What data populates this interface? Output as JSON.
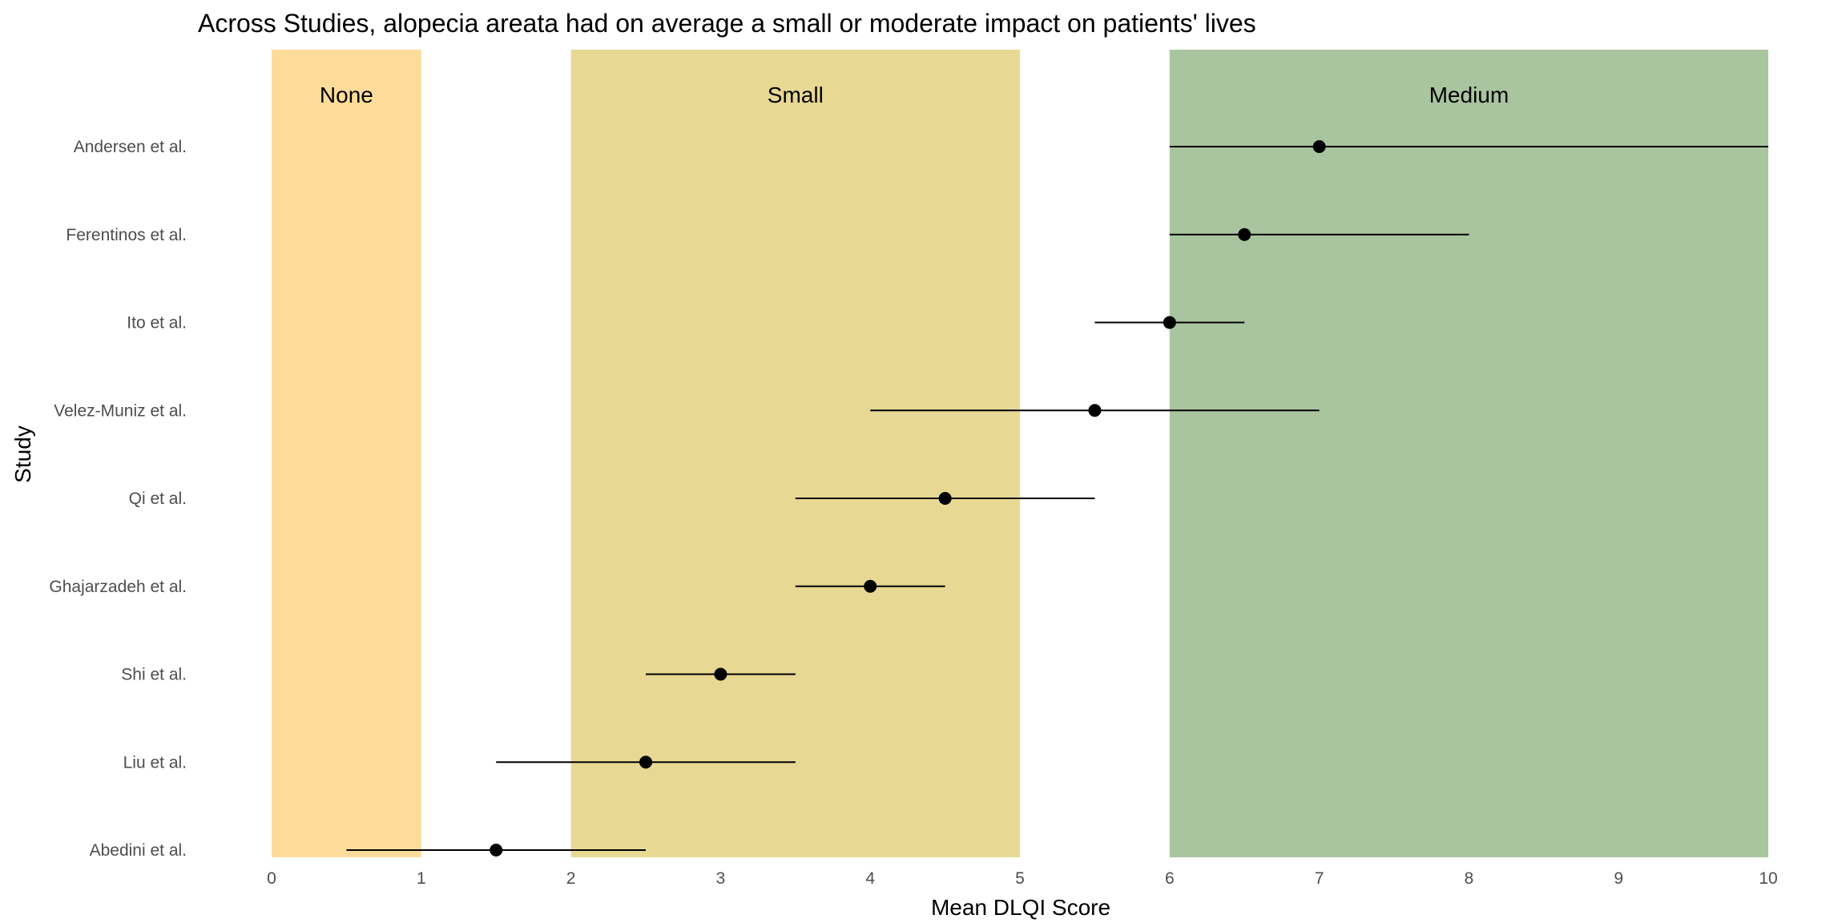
{
  "chart_data": {
    "type": "forest",
    "title": "Across Studies, alopecia areata had on average a small or moderate impact on patients' lives",
    "xlabel": "Mean DLQI Score",
    "ylabel": "Study",
    "xlim": [
      0,
      10
    ],
    "x_ticks": [
      "0",
      "1",
      "2",
      "3",
      "4",
      "5",
      "6",
      "7",
      "8",
      "9",
      "10"
    ],
    "grid": false,
    "bands": [
      {
        "label": "None",
        "from": 0,
        "to": 1,
        "color": "#fddc9a"
      },
      {
        "label": "Small",
        "from": 2,
        "to": 5,
        "color": "#e7d893"
      },
      {
        "label": "Medium",
        "from": 6,
        "to": 10,
        "color": "#a9c5a0"
      }
    ],
    "studies": [
      {
        "name": "Andersen et al.",
        "mean": 7.0,
        "low": 6.0,
        "high": 10.0
      },
      {
        "name": "Ferentinos et al.",
        "mean": 6.5,
        "low": 6.0,
        "high": 8.0
      },
      {
        "name": "Ito et al.",
        "mean": 6.0,
        "low": 5.5,
        "high": 6.5
      },
      {
        "name": "Velez-Muniz et al.",
        "mean": 5.5,
        "low": 4.0,
        "high": 7.0
      },
      {
        "name": "Qi et al.",
        "mean": 4.5,
        "low": 3.5,
        "high": 5.5
      },
      {
        "name": "Ghajarzadeh et al.",
        "mean": 4.0,
        "low": 3.5,
        "high": 4.5
      },
      {
        "name": "Shi et al.",
        "mean": 3.0,
        "low": 2.5,
        "high": 3.5
      },
      {
        "name": "Liu et al.",
        "mean": 2.5,
        "low": 1.5,
        "high": 3.5
      },
      {
        "name": "Abedini et al.",
        "mean": 1.5,
        "low": 0.5,
        "high": 2.5
      }
    ],
    "colors": {
      "point": "#000000",
      "errorbar": "#000000"
    }
  }
}
